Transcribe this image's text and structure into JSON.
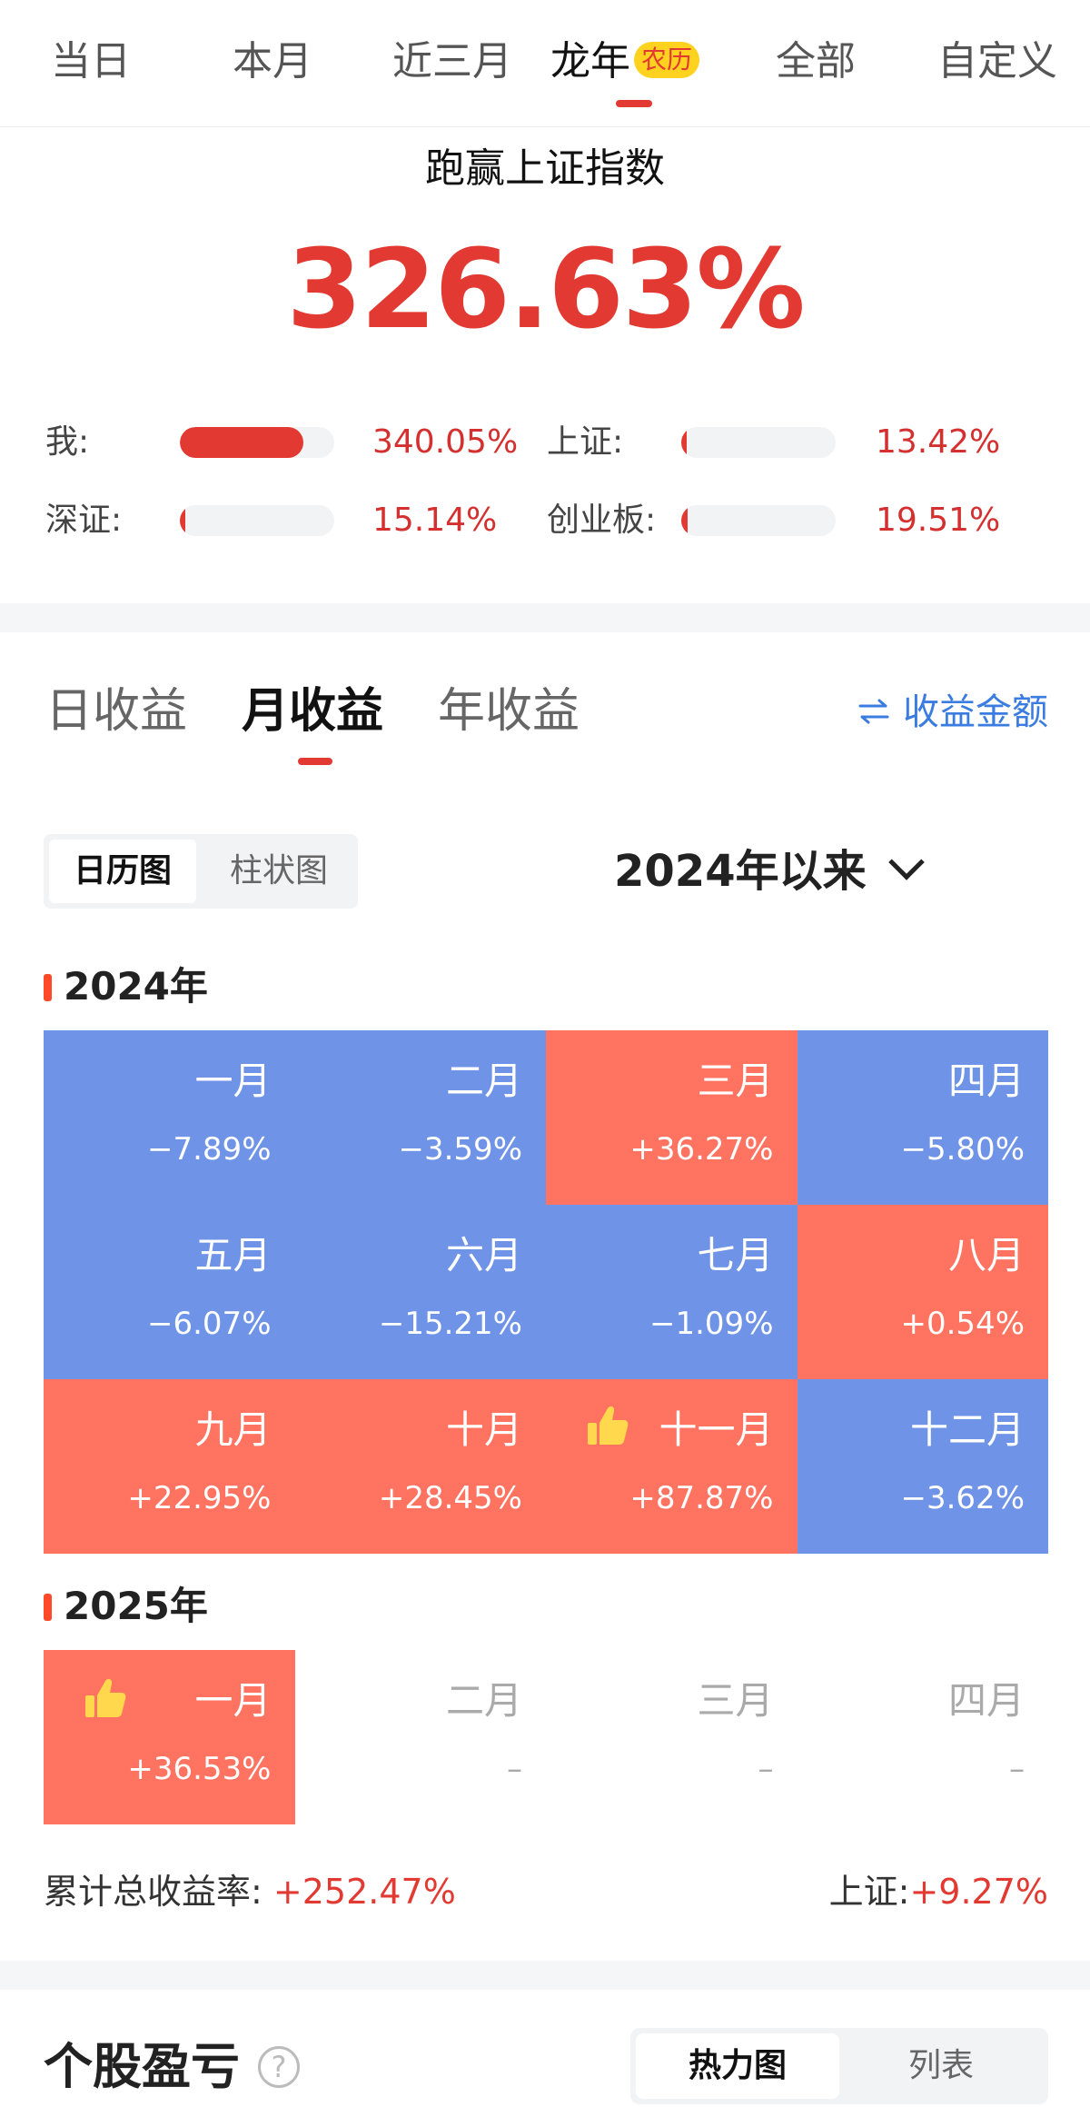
{
  "period_tabs": [
    {
      "label": "当日"
    },
    {
      "label": "本月"
    },
    {
      "label": "近三月"
    },
    {
      "label": "龙年",
      "badge": "农历",
      "active": true
    },
    {
      "label": "全部"
    },
    {
      "label": "自定义"
    }
  ],
  "outperform": {
    "title": "跑赢上证指数",
    "value": "326.63%"
  },
  "comparison": [
    {
      "label": "我:",
      "value": "340.05%",
      "fill_fraction": 0.8
    },
    {
      "label": "上证:",
      "value": "13.42%",
      "fill_fraction": 0.03
    },
    {
      "label": "深证:",
      "value": "15.14%",
      "fill_fraction": 0.03
    },
    {
      "label": "创业板:",
      "value": "19.51%",
      "fill_fraction": 0.04
    }
  ],
  "return_tabs": [
    {
      "label": "日收益"
    },
    {
      "label": "月收益",
      "active": true
    },
    {
      "label": "年收益"
    }
  ],
  "amount_toggle": {
    "icon": "swap-icon",
    "label": "收益金额"
  },
  "view_switch": [
    {
      "label": "日历图",
      "active": true
    },
    {
      "label": "柱状图"
    }
  ],
  "range_select": {
    "label": "2024年以来",
    "icon": "chevron-down-icon"
  },
  "years": [
    {
      "label": "2024年",
      "months": [
        {
          "name": "一月",
          "return": "−7.89%",
          "trend": "loss"
        },
        {
          "name": "二月",
          "return": "−3.59%",
          "trend": "loss"
        },
        {
          "name": "三月",
          "return": "+36.27%",
          "trend": "gain"
        },
        {
          "name": "四月",
          "return": "−5.80%",
          "trend": "loss"
        },
        {
          "name": "五月",
          "return": "−6.07%",
          "trend": "loss"
        },
        {
          "name": "六月",
          "return": "−15.21%",
          "trend": "loss"
        },
        {
          "name": "七月",
          "return": "−1.09%",
          "trend": "loss"
        },
        {
          "name": "八月",
          "return": "+0.54%",
          "trend": "gain"
        },
        {
          "name": "九月",
          "return": "+22.95%",
          "trend": "gain"
        },
        {
          "name": "十月",
          "return": "+28.45%",
          "trend": "gain"
        },
        {
          "name": "十一月",
          "return": "+87.87%",
          "trend": "gain",
          "best": true
        },
        {
          "name": "十二月",
          "return": "−3.62%",
          "trend": "loss"
        }
      ]
    },
    {
      "label": "2025年",
      "months": [
        {
          "name": "一月",
          "return": "+36.53%",
          "trend": "gain",
          "best": true
        },
        {
          "name": "二月",
          "return": "–",
          "trend": "empty"
        },
        {
          "name": "三月",
          "return": "–",
          "trend": "empty"
        },
        {
          "name": "四月",
          "return": "–",
          "trend": "empty"
        }
      ]
    }
  ],
  "totals": {
    "total_label": "累计总收益率:",
    "total_value": "+252.47%",
    "index_label": "上证:",
    "index_value": "+9.27%"
  },
  "stock_section": {
    "title": "个股盈亏",
    "help_icon": "?",
    "switch": [
      {
        "label": "热力图",
        "active": true
      },
      {
        "label": "列表"
      }
    ]
  },
  "colors": {
    "accent_red": "#e23a32",
    "gain_cell": "#ff7360",
    "loss_cell": "#6f93e6",
    "link_blue": "#3b7ce0"
  }
}
